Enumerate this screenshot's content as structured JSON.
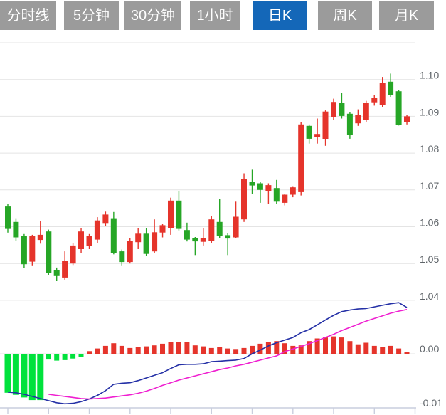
{
  "tabs": {
    "items": [
      {
        "label": "分时线",
        "name": "tab-timeline",
        "active": false
      },
      {
        "label": "5分钟",
        "name": "tab-5min",
        "active": false
      },
      {
        "label": "30分钟",
        "name": "tab-30min",
        "active": false
      },
      {
        "label": "1小时",
        "name": "tab-1hour",
        "active": false
      },
      {
        "label": "日K",
        "name": "tab-daily-k",
        "active": true
      },
      {
        "label": "周K",
        "name": "tab-weekly-k",
        "active": false
      },
      {
        "label": "月K",
        "name": "tab-monthly-k",
        "active": false
      }
    ]
  },
  "colors": {
    "tab_inactive": "#9b9b9b",
    "tab_active": "#1467b8",
    "tab_text": "#ffffff",
    "up_red": "#e5342b",
    "down_green": "#26a626",
    "macd_green": "#00e23c",
    "dif_line_blue": "#2430a6",
    "dea_line_magenta": "#ef1fd0",
    "gridline": "#e4e4e4",
    "axis": "#c9cede",
    "label_text": "#5f6469",
    "background": "#ffffff"
  },
  "chart_data": [
    {
      "type": "candlestick",
      "title": "daily K-line price pane",
      "legend_position": "none",
      "grid": true,
      "convention": "red = close >= open (up), green = close < open (down)",
      "ylim": [
        1.038,
        1.112
      ],
      "grid_levels": [
        1.11,
        1.1,
        1.09,
        1.08,
        1.07,
        1.06,
        1.05,
        1.04
      ],
      "y_ticks": [
        1.1,
        1.09,
        1.08,
        1.07,
        1.06,
        1.05,
        1.04
      ],
      "candles_ohlc": [
        [
          1.0655,
          1.0661,
          1.0584,
          1.0594
        ],
        [
          1.0613,
          1.0623,
          1.0561,
          1.0571
        ],
        [
          1.0574,
          1.058,
          1.0488,
          1.0498
        ],
        [
          1.0505,
          1.0578,
          1.0495,
          1.0574
        ],
        [
          1.0564,
          1.0616,
          1.0554,
          1.0578
        ],
        [
          1.0587,
          1.0592,
          1.0468,
          1.0475
        ],
        [
          1.0481,
          1.0489,
          1.0452,
          1.0466
        ],
        [
          1.0462,
          1.0533,
          1.0456,
          1.0507
        ],
        [
          1.05,
          1.0555,
          1.0496,
          1.0549
        ],
        [
          1.0539,
          1.0597,
          1.0529,
          1.0587
        ],
        [
          1.0548,
          1.058,
          1.0539,
          1.0574
        ],
        [
          1.0565,
          1.0626,
          1.0556,
          1.0617
        ],
        [
          1.061,
          1.0641,
          1.0601,
          1.0633
        ],
        [
          1.0623,
          1.064,
          1.0525,
          1.0529
        ],
        [
          1.0533,
          1.0538,
          1.0495,
          1.0504
        ],
        [
          1.0504,
          1.057,
          1.05,
          1.0562
        ],
        [
          1.0558,
          1.0597,
          1.0539,
          1.0581
        ],
        [
          1.0581,
          1.0597,
          1.052,
          1.0526
        ],
        [
          1.0533,
          1.062,
          1.0528,
          1.0585
        ],
        [
          1.0584,
          1.0607,
          1.0571,
          1.0604
        ],
        [
          1.0597,
          1.0679,
          1.0578,
          1.0671
        ],
        [
          1.0671,
          1.0696,
          1.059,
          1.0594
        ],
        [
          1.0591,
          1.0611,
          1.056,
          1.0565
        ],
        [
          1.0568,
          1.0572,
          1.0523,
          1.056
        ],
        [
          1.0559,
          1.0597,
          1.0549,
          1.0568
        ],
        [
          1.0562,
          1.063,
          1.0556,
          1.062
        ],
        [
          1.0613,
          1.0675,
          1.057,
          1.0575
        ],
        [
          1.0577,
          1.0582,
          1.0523,
          1.0568
        ],
        [
          1.0571,
          1.0668,
          1.0568,
          1.0627
        ],
        [
          1.062,
          1.0745,
          1.0613,
          1.0729
        ],
        [
          1.0722,
          1.0755,
          1.069,
          1.0712
        ],
        [
          1.0718,
          1.0722,
          1.0665,
          1.07
        ],
        [
          1.0697,
          1.0718,
          1.0662,
          1.0713
        ],
        [
          1.0705,
          1.0727,
          1.0662,
          1.0668
        ],
        [
          1.0665,
          1.069,
          1.0658,
          1.0687
        ],
        [
          1.0687,
          1.071,
          1.068,
          1.0707
        ],
        [
          1.0694,
          1.0884,
          1.0685,
          1.0878
        ],
        [
          1.0874,
          1.0878,
          1.0826,
          1.0839
        ],
        [
          1.0843,
          1.0894,
          1.0826,
          1.0852
        ],
        [
          1.0839,
          1.0916,
          1.082,
          1.0913
        ],
        [
          1.0897,
          1.0948,
          1.089,
          1.0939
        ],
        [
          1.0936,
          1.0964,
          1.0894,
          1.0901
        ],
        [
          1.0907,
          1.0912,
          1.0839,
          1.0849
        ],
        [
          1.0881,
          1.0919,
          1.0874,
          1.0903
        ],
        [
          1.089,
          1.0942,
          1.0885,
          1.0936
        ],
        [
          1.0938,
          1.0958,
          1.0929,
          1.0951
        ],
        [
          1.093,
          1.1007,
          1.0926,
          1.099
        ],
        [
          1.0994,
          1.1016,
          1.0953,
          1.0958
        ],
        [
          1.0968,
          1.0972,
          1.0875,
          1.0877
        ],
        [
          1.0884,
          1.0903,
          1.0878,
          1.09
        ]
      ]
    },
    {
      "type": "bar",
      "title": "MACD sub-pane",
      "grid": true,
      "y_tick_labels": [
        "0.00",
        "-0.01"
      ],
      "y_tick_values": [
        0.0,
        -0.01
      ],
      "x_tick_every_n_candles": 5,
      "histogram": [
        -0.0074,
        -0.0078,
        -0.0083,
        -0.0088,
        -0.0088,
        -0.0011,
        -0.0013,
        -0.0012,
        -0.0009,
        -0.0006,
        0.0005,
        0.001,
        0.0015,
        0.002,
        0.0015,
        0.0011,
        0.0013,
        0.0014,
        0.0016,
        0.0019,
        0.0022,
        0.0023,
        0.0022,
        0.0016,
        0.0014,
        0.0011,
        0.0013,
        0.001,
        0.0009,
        0.0011,
        0.0015,
        0.0019,
        0.0022,
        0.0024,
        0.002,
        0.0015,
        0.0016,
        0.0024,
        0.0029,
        0.0031,
        0.0033,
        0.0031,
        0.0024,
        0.0018,
        0.0021,
        0.0015,
        0.0013,
        0.0015,
        0.001,
        0.0004
      ],
      "dif_line": [
        -0.0073,
        -0.0074,
        -0.0077,
        -0.0081,
        -0.0085,
        -0.0089,
        -0.0093,
        -0.0095,
        -0.0094,
        -0.0091,
        -0.0086,
        -0.0079,
        -0.007,
        -0.0058,
        -0.0056,
        -0.0055,
        -0.0051,
        -0.0046,
        -0.0041,
        -0.0036,
        -0.0028,
        -0.0021,
        -0.002,
        -0.002,
        -0.0019,
        -0.0015,
        -0.0014,
        -0.0013,
        -0.0012,
        -0.0009,
        0.0,
        0.0007,
        0.0015,
        0.0021,
        0.0026,
        0.0031,
        0.004,
        0.0046,
        0.0055,
        0.0064,
        0.0073,
        0.008,
        0.0083,
        0.0085,
        0.0086,
        0.0089,
        0.0092,
        0.0095,
        0.0097,
        0.0088
      ],
      "dea_line": [
        null,
        null,
        null,
        null,
        null,
        -0.0077,
        -0.0079,
        -0.0081,
        -0.0083,
        -0.0085,
        -0.0086,
        -0.0085,
        -0.0084,
        -0.0082,
        -0.008,
        -0.0078,
        -0.0075,
        -0.0071,
        -0.0066,
        -0.006,
        -0.0055,
        -0.005,
        -0.0046,
        -0.0042,
        -0.0038,
        -0.0034,
        -0.003,
        -0.0027,
        -0.0023,
        -0.002,
        -0.0016,
        -0.0012,
        -0.0008,
        -0.0004,
        0.0004,
        0.0009,
        0.0014,
        0.0019,
        0.0025,
        0.0031,
        0.0037,
        0.0044,
        0.005,
        0.0056,
        0.0062,
        0.0067,
        0.0072,
        0.0077,
        0.0081,
        0.0084
      ]
    }
  ]
}
